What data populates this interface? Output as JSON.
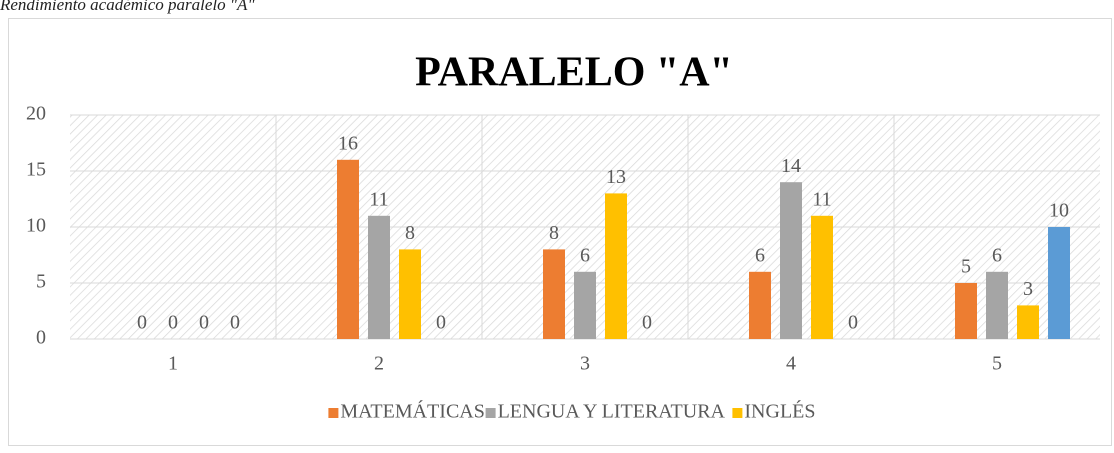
{
  "caption": "Rendimiento académico paralelo \"A\"",
  "chart_data": {
    "type": "bar",
    "title": "PARALELO \"A\"",
    "categories": [
      "1",
      "2",
      "3",
      "4",
      "5"
    ],
    "series": [
      {
        "name": "MATEMÁTICAS",
        "color": "#ed7d31",
        "values": [
          0,
          16,
          8,
          6,
          5
        ]
      },
      {
        "name": "LENGUA Y LITERATURA",
        "color": "#a5a5a5",
        "values": [
          0,
          11,
          6,
          14,
          6
        ]
      },
      {
        "name": "INGLÉS",
        "color": "#ffc000",
        "values": [
          0,
          8,
          13,
          11,
          3
        ]
      },
      {
        "color": "#5b9bd5",
        "values": [
          0,
          0,
          0,
          0,
          10
        ]
      }
    ],
    "ylim": [
      0,
      20
    ],
    "yticks": [
      0,
      5,
      10,
      15,
      20
    ],
    "grid": true,
    "legend": "bottom"
  }
}
